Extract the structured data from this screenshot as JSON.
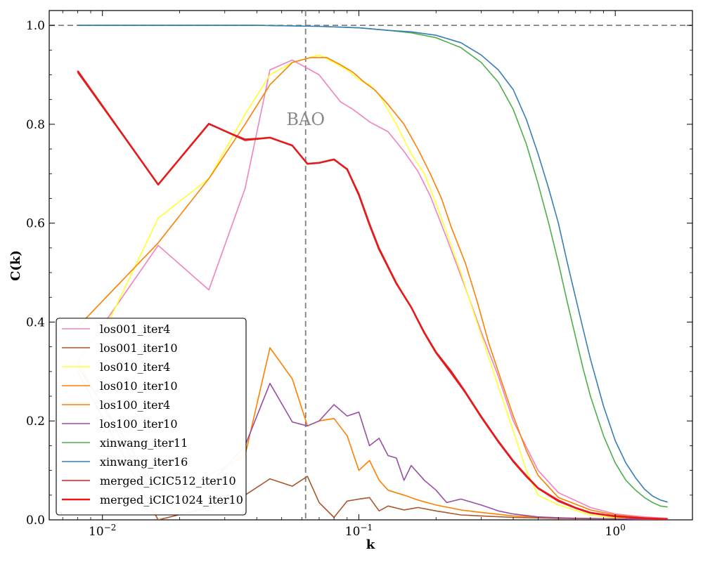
{
  "chart_data": {
    "type": "line",
    "title": "",
    "xlabel": "k",
    "ylabel": "C(k)",
    "xscale": "log",
    "xlim": [
      0.0062,
      2.0
    ],
    "ylim": [
      0.0,
      1.03
    ],
    "x_ticks": [
      {
        "v": 0.01,
        "label": "10−2"
      },
      {
        "v": 0.1,
        "label": "10−1"
      },
      {
        "v": 1.0,
        "label": "10⁰"
      }
    ],
    "y_ticks": [
      0.0,
      0.2,
      0.4,
      0.6,
      0.8,
      1.0
    ],
    "y_tick_labels": [
      "0.0",
      "0.2",
      "0.4",
      "0.6",
      "0.8",
      "1.0"
    ],
    "reference_lines": {
      "hline_y": 1.0,
      "vline_x": 0.062,
      "color": "#808080"
    },
    "annotation": {
      "text": "BAO",
      "x": 0.062,
      "y": 0.8
    },
    "legend_position": "lower-left",
    "series": [
      {
        "name": "los001_iter4",
        "color": "#f082c0",
        "width": 1.6,
        "x": [
          0.008,
          0.0165,
          0.026,
          0.036,
          0.045,
          0.055,
          0.07,
          0.075,
          0.085,
          0.095,
          0.11,
          0.13,
          0.15,
          0.17,
          0.19,
          0.22,
          0.26,
          0.3,
          0.35,
          0.4,
          0.5,
          0.6,
          0.8,
          1.0,
          1.3,
          1.6
        ],
        "values": [
          0.32,
          0.555,
          0.465,
          0.67,
          0.91,
          0.93,
          0.9,
          0.88,
          0.845,
          0.83,
          0.805,
          0.785,
          0.745,
          0.705,
          0.655,
          0.57,
          0.47,
          0.38,
          0.29,
          0.2,
          0.1,
          0.055,
          0.025,
          0.012,
          0.006,
          0.003
        ]
      },
      {
        "name": "los001_iter10",
        "color": "#a9572a",
        "width": 1.6,
        "x": [
          0.008,
          0.0165,
          0.026,
          0.036,
          0.045,
          0.055,
          0.063,
          0.07,
          0.08,
          0.09,
          0.1,
          0.11,
          0.12,
          0.13,
          0.15,
          0.17,
          0.2,
          0.25,
          0.3,
          0.4,
          0.6,
          1.0,
          1.6
        ],
        "values": [
          0.3,
          0.0,
          0.025,
          0.05,
          0.083,
          0.068,
          0.088,
          0.035,
          0.005,
          0.038,
          0.042,
          0.045,
          0.018,
          0.028,
          0.02,
          0.025,
          0.018,
          0.01,
          0.008,
          0.005,
          0.003,
          0.002,
          0.001
        ]
      },
      {
        "name": "los010_iter4",
        "color": "#ffff33",
        "width": 1.6,
        "x": [
          0.008,
          0.0165,
          0.026,
          0.036,
          0.045,
          0.055,
          0.07,
          0.08,
          0.09,
          0.1,
          0.11,
          0.12,
          0.14,
          0.16,
          0.18,
          0.2,
          0.22,
          0.25,
          0.28,
          0.32,
          0.36,
          0.4,
          0.45,
          0.5,
          0.6,
          0.8,
          1.0,
          1.3,
          1.6
        ],
        "values": [
          0.27,
          0.61,
          0.69,
          0.82,
          0.9,
          0.925,
          0.94,
          0.925,
          0.91,
          0.89,
          0.88,
          0.86,
          0.8,
          0.74,
          0.7,
          0.64,
          0.58,
          0.5,
          0.42,
          0.33,
          0.25,
          0.18,
          0.1,
          0.05,
          0.03,
          0.01,
          0.004,
          0.002,
          0.001
        ]
      },
      {
        "name": "los010_iter10",
        "color": "#ff7f00",
        "width": 1.6,
        "x": [
          0.008,
          0.0165,
          0.026,
          0.036,
          0.045,
          0.055,
          0.063,
          0.07,
          0.08,
          0.09,
          0.1,
          0.11,
          0.12,
          0.13,
          0.15,
          0.17,
          0.2,
          0.25,
          0.3,
          0.4,
          0.6,
          1.0,
          1.6
        ],
        "values": [
          0.32,
          0.03,
          0.09,
          0.13,
          0.348,
          0.285,
          0.19,
          0.2,
          0.205,
          0.17,
          0.1,
          0.12,
          0.08,
          0.06,
          0.05,
          0.04,
          0.03,
          0.02,
          0.015,
          0.008,
          0.004,
          0.002,
          0.001
        ]
      },
      {
        "name": "los100_iter4",
        "color": "#ff7f00",
        "width": 1.6,
        "x": [
          0.008,
          0.0165,
          0.026,
          0.036,
          0.045,
          0.055,
          0.065,
          0.075,
          0.085,
          0.095,
          0.105,
          0.115,
          0.13,
          0.15,
          0.17,
          0.19,
          0.21,
          0.23,
          0.26,
          0.29,
          0.32,
          0.36,
          0.4,
          0.45,
          0.5,
          0.6,
          0.8,
          1.0,
          1.3,
          1.6
        ],
        "values": [
          0.39,
          0.56,
          0.69,
          0.8,
          0.88,
          0.925,
          0.935,
          0.935,
          0.92,
          0.905,
          0.885,
          0.87,
          0.84,
          0.8,
          0.75,
          0.7,
          0.65,
          0.59,
          0.52,
          0.44,
          0.36,
          0.28,
          0.21,
          0.14,
          0.09,
          0.045,
          0.02,
          0.01,
          0.004,
          0.002
        ]
      },
      {
        "name": "los100_iter10",
        "color": "#984ea3",
        "width": 1.6,
        "x": [
          0.008,
          0.0165,
          0.026,
          0.036,
          0.045,
          0.055,
          0.063,
          0.07,
          0.08,
          0.09,
          0.1,
          0.11,
          0.12,
          0.13,
          0.14,
          0.15,
          0.16,
          0.18,
          0.2,
          0.22,
          0.25,
          0.3,
          0.35,
          0.4,
          0.5,
          0.7,
          1.0,
          1.6
        ],
        "values": [
          0.31,
          0.06,
          0.07,
          0.15,
          0.276,
          0.198,
          0.19,
          0.2,
          0.233,
          0.21,
          0.218,
          0.15,
          0.165,
          0.13,
          0.125,
          0.08,
          0.11,
          0.08,
          0.06,
          0.035,
          0.042,
          0.03,
          0.018,
          0.012,
          0.006,
          0.003,
          0.002,
          0.001
        ]
      },
      {
        "name": "xinwang_iter11",
        "color": "#4daf4a",
        "width": 1.6,
        "x": [
          0.008,
          0.02,
          0.04,
          0.07,
          0.1,
          0.13,
          0.16,
          0.2,
          0.25,
          0.3,
          0.35,
          0.4,
          0.45,
          0.5,
          0.55,
          0.6,
          0.65,
          0.7,
          0.75,
          0.8,
          0.9,
          1.0,
          1.1,
          1.2,
          1.3,
          1.4,
          1.5,
          1.6
        ],
        "values": [
          1.0,
          1.0,
          1.0,
          0.998,
          0.995,
          0.99,
          0.985,
          0.975,
          0.955,
          0.925,
          0.885,
          0.83,
          0.76,
          0.68,
          0.6,
          0.52,
          0.44,
          0.37,
          0.305,
          0.25,
          0.17,
          0.115,
          0.08,
          0.06,
          0.045,
          0.035,
          0.028,
          0.026
        ]
      },
      {
        "name": "xinwang_iter16",
        "color": "#377eb8",
        "width": 1.6,
        "x": [
          0.008,
          0.02,
          0.04,
          0.07,
          0.1,
          0.13,
          0.16,
          0.2,
          0.25,
          0.3,
          0.35,
          0.4,
          0.45,
          0.5,
          0.55,
          0.6,
          0.65,
          0.7,
          0.75,
          0.8,
          0.9,
          1.0,
          1.1,
          1.2,
          1.3,
          1.4,
          1.5,
          1.6
        ],
        "values": [
          1.0,
          1.0,
          1.0,
          0.998,
          0.995,
          0.99,
          0.987,
          0.98,
          0.965,
          0.94,
          0.91,
          0.87,
          0.81,
          0.74,
          0.67,
          0.6,
          0.52,
          0.45,
          0.385,
          0.325,
          0.23,
          0.16,
          0.115,
          0.085,
          0.062,
          0.048,
          0.04,
          0.036
        ]
      },
      {
        "name": "merged_iCIC512_iter10",
        "color": "#e41a1c",
        "width": 1.6,
        "x": [
          0.008,
          0.0165,
          0.026,
          0.036,
          0.045,
          0.055,
          0.063,
          0.07,
          0.08,
          0.09,
          0.1,
          0.11,
          0.12,
          0.14,
          0.16,
          0.18,
          0.2,
          0.23,
          0.26,
          0.3,
          0.35,
          0.4,
          0.45,
          0.5,
          0.6,
          0.7,
          0.8,
          1.0,
          1.3,
          1.6
        ],
        "values": [
          0.905,
          0.678,
          0.8,
          0.77,
          0.773,
          0.758,
          0.72,
          0.722,
          0.728,
          0.71,
          0.66,
          0.6,
          0.55,
          0.48,
          0.43,
          0.38,
          0.34,
          0.3,
          0.26,
          0.21,
          0.16,
          0.12,
          0.09,
          0.065,
          0.04,
          0.025,
          0.015,
          0.008,
          0.004,
          0.002
        ]
      },
      {
        "name": "merged_iCIC1024_iter10",
        "color": "#e41a1c",
        "width": 2.6,
        "x": [
          0.008,
          0.0165,
          0.026,
          0.036,
          0.045,
          0.055,
          0.063,
          0.07,
          0.08,
          0.09,
          0.1,
          0.11,
          0.12,
          0.14,
          0.16,
          0.18,
          0.2,
          0.23,
          0.26,
          0.3,
          0.35,
          0.4,
          0.45,
          0.5,
          0.6,
          0.7,
          0.8,
          1.0,
          1.3,
          1.6
        ],
        "values": [
          0.908,
          0.678,
          0.801,
          0.768,
          0.773,
          0.757,
          0.72,
          0.722,
          0.729,
          0.709,
          0.657,
          0.597,
          0.547,
          0.478,
          0.43,
          0.378,
          0.338,
          0.296,
          0.258,
          0.208,
          0.158,
          0.118,
          0.088,
          0.064,
          0.038,
          0.024,
          0.014,
          0.007,
          0.003,
          0.001
        ]
      }
    ]
  }
}
